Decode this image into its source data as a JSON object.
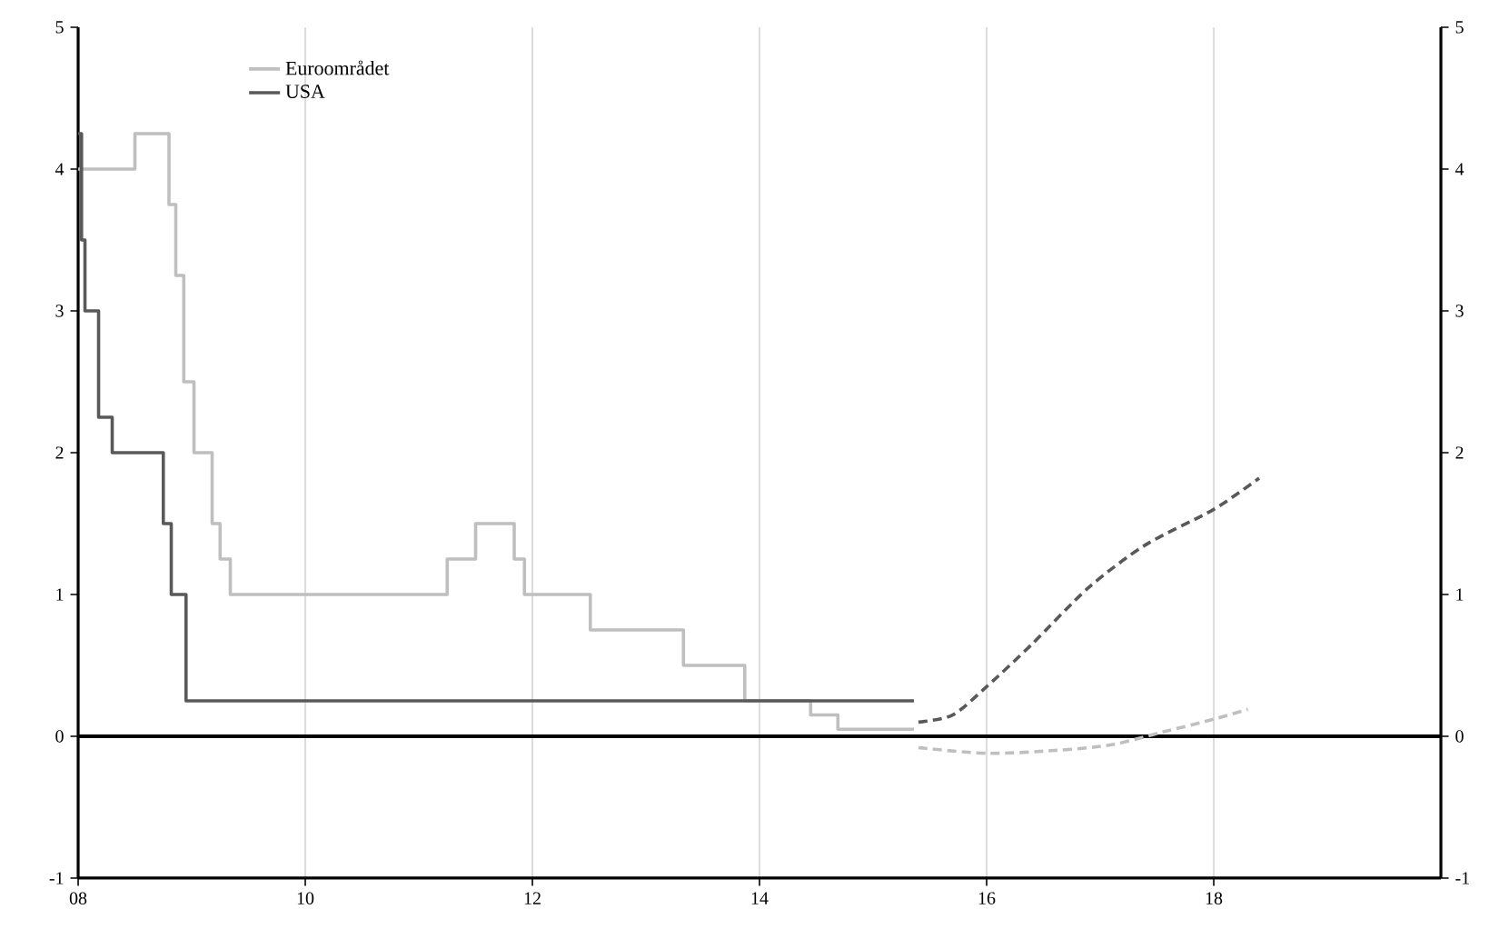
{
  "chart_data": {
    "type": "step",
    "xlim": [
      2008,
      2020
    ],
    "xticks": [
      {
        "value": 2008,
        "label": "08"
      },
      {
        "value": 2010,
        "label": "10"
      },
      {
        "value": 2012,
        "label": "12"
      },
      {
        "value": 2014,
        "label": "14"
      },
      {
        "value": 2016,
        "label": "16"
      },
      {
        "value": 2018,
        "label": "18"
      }
    ],
    "ylim": [
      -1,
      5
    ],
    "yticks": [
      -1,
      0,
      1,
      2,
      3,
      4,
      5
    ],
    "y2lim": [
      -1,
      5
    ],
    "y2ticks": [
      -1,
      0,
      1,
      2,
      3,
      4,
      5
    ],
    "grid": "x",
    "legend": "top left",
    "ref_lines": [
      {
        "axis": "y",
        "value": 0,
        "color": "#000000"
      }
    ],
    "series": [
      {
        "name": "Euroområdet",
        "color": "#bfbfbf",
        "x": [
          2008.0,
          2008.5,
          2008.8,
          2008.86,
          2008.93,
          2009.02,
          2009.18,
          2009.25,
          2009.34,
          2011.25,
          2011.5,
          2011.84,
          2011.93,
          2012.51,
          2013.33,
          2013.87,
          2014.45,
          2014.69,
          2015.36
        ],
        "values": [
          4.0,
          4.25,
          3.75,
          3.25,
          2.5,
          2.0,
          1.5,
          1.25,
          1.0,
          1.25,
          1.5,
          1.25,
          1.0,
          0.75,
          0.5,
          0.25,
          0.15,
          0.05,
          0.05
        ]
      },
      {
        "name": "USA",
        "color": "#595959",
        "x": [
          2008.0,
          2008.03,
          2008.06,
          2008.18,
          2008.3,
          2008.75,
          2008.82,
          2008.95,
          2015.36
        ],
        "values": [
          4.25,
          3.5,
          3.0,
          2.25,
          2.0,
          1.5,
          1.0,
          0.25,
          0.25
        ]
      },
      {
        "type": "line",
        "line_style": "dashed",
        "color": "#595959",
        "x": [
          2015.4,
          2015.7,
          2016.0,
          2016.4,
          2016.9,
          2017.4,
          2018.0,
          2018.4
        ],
        "values": [
          0.1,
          0.15,
          0.35,
          0.65,
          1.05,
          1.35,
          1.6,
          1.82
        ]
      },
      {
        "type": "line",
        "line_style": "dashed",
        "color": "#bfbfbf",
        "x": [
          2015.4,
          2016.0,
          2016.6,
          2017.1,
          2017.55,
          2018.0,
          2018.3
        ],
        "values": [
          -0.08,
          -0.12,
          -0.1,
          -0.06,
          0.03,
          0.12,
          0.19
        ]
      }
    ]
  }
}
